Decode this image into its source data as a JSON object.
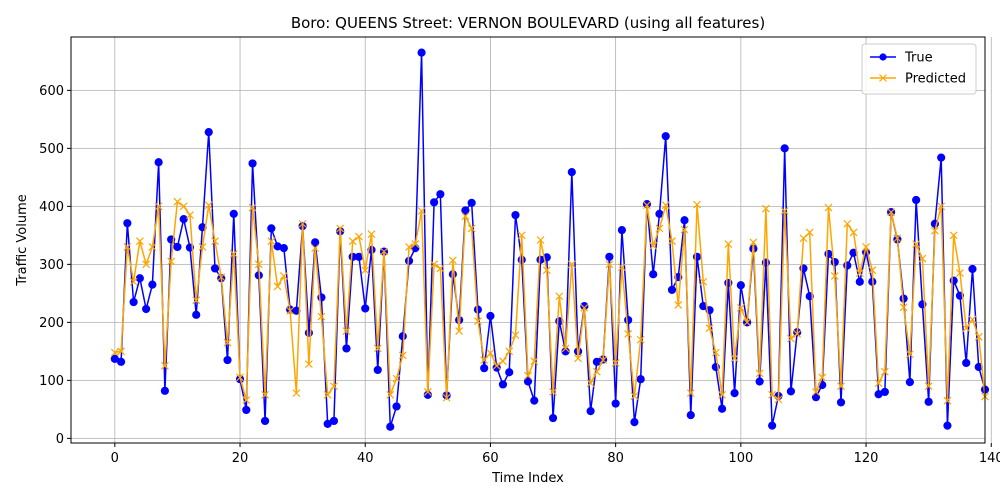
{
  "chart_data": {
    "type": "line",
    "title": "Boro: QUEENS Street: VERNON BOULEVARD (using all features)",
    "xlabel": "Time Index",
    "ylabel": "Traffic Volume",
    "xlim": [
      -7,
      139
    ],
    "ylim": [
      -8,
      692
    ],
    "xticks": [
      0,
      20,
      40,
      60,
      80,
      100,
      120,
      140
    ],
    "yticks": [
      0,
      100,
      200,
      300,
      400,
      500,
      600
    ],
    "grid": true,
    "legend_position": "top-right",
    "series": [
      {
        "name": "True",
        "color": "#0000ff",
        "marker": "circle",
        "values": [
          137,
          132,
          371,
          235,
          276,
          223,
          265,
          476,
          82,
          343,
          330,
          378,
          329,
          213,
          364,
          528,
          293,
          276,
          135,
          387,
          102,
          49,
          474,
          281,
          30,
          362,
          331,
          328,
          222,
          220,
          366,
          182,
          338,
          243,
          25,
          30,
          357,
          155,
          313,
          313,
          224,
          325,
          118,
          322,
          20,
          55,
          176,
          306,
          328,
          665,
          75,
          407,
          421,
          74,
          283,
          204,
          393,
          406,
          222,
          121,
          211,
          122,
          93,
          114,
          385,
          308,
          98,
          65,
          308,
          312,
          35,
          202,
          150,
          459,
          150,
          228,
          47,
          132,
          136,
          313,
          60,
          359,
          204,
          28,
          102,
          404,
          283,
          387,
          521,
          256,
          278,
          376,
          40,
          313,
          228,
          221,
          123,
          51,
          268,
          78,
          264,
          200,
          327,
          98,
          303,
          22,
          73,
          500,
          81,
          183,
          293,
          245,
          71,
          92,
          318,
          304,
          62,
          298,
          320,
          270,
          321,
          270,
          76,
          80,
          390,
          343,
          241,
          97,
          411,
          231,
          63,
          370,
          484,
          22,
          272,
          246,
          130,
          292,
          123,
          84
        ]
      },
      {
        "name": "Predicted",
        "color": "#ffa500",
        "marker": "x",
        "values": [
          148,
          150,
          330,
          270,
          340,
          300,
          330,
          400,
          125,
          305,
          408,
          400,
          385,
          238,
          330,
          402,
          340,
          278,
          165,
          318,
          105,
          66,
          398,
          300,
          75,
          340,
          262,
          280,
          220,
          78,
          370,
          128,
          328,
          210,
          75,
          90,
          362,
          185,
          340,
          348,
          290,
          352,
          155,
          322,
          75,
          103,
          143,
          330,
          335,
          392,
          80,
          300,
          293,
          70,
          307,
          185,
          383,
          362,
          202,
          135,
          147,
          125,
          133,
          150,
          178,
          350,
          108,
          133,
          342,
          290,
          80,
          245,
          155,
          300,
          138,
          225,
          95,
          115,
          135,
          300,
          130,
          295,
          180,
          73,
          170,
          402,
          332,
          362,
          402,
          340,
          230,
          360,
          78,
          403,
          270,
          190,
          148,
          75,
          335,
          138,
          225,
          200,
          338,
          112,
          396,
          75,
          67,
          392,
          172,
          180,
          345,
          355,
          80,
          105,
          398,
          280,
          90,
          370,
          355,
          285,
          330,
          290,
          95,
          115,
          390,
          345,
          226,
          145,
          335,
          310,
          90,
          358,
          400,
          65,
          350,
          285,
          190,
          205,
          175,
          72
        ]
      }
    ]
  }
}
